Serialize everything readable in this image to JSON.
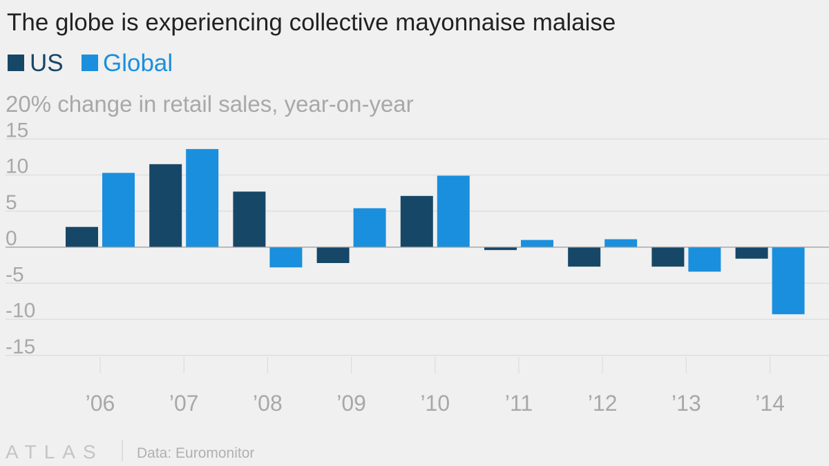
{
  "chart_data": {
    "type": "bar",
    "title": "The globe is experiencing collective mayonnaise malaise",
    "ylabel": "20% change in retail sales, year-on-year",
    "categories": [
      "’06",
      "’07",
      "’08",
      "’09",
      "’10",
      "’11",
      "’12",
      "’13",
      "’14"
    ],
    "series": [
      {
        "name": "US",
        "color": "#174767",
        "values": [
          2.8,
          11.5,
          7.7,
          -2.2,
          7.1,
          -0.4,
          -2.7,
          -2.7,
          -1.6
        ]
      },
      {
        "name": "Global",
        "color": "#1a8fdd",
        "values": [
          10.3,
          13.6,
          -2.8,
          5.4,
          9.9,
          1.0,
          1.1,
          -3.4,
          -9.3
        ]
      }
    ],
    "ylim": [
      -18,
      15
    ],
    "yticks": [
      "15",
      "10",
      "5",
      "0",
      "-5",
      "-10",
      "-15"
    ],
    "ytick_values": [
      15,
      10,
      5,
      0,
      -5,
      -10,
      -15
    ],
    "grid": true,
    "legend_position": "top-left"
  },
  "footer": {
    "logo": "ATLAS",
    "source": "Data: Euromonitor"
  }
}
